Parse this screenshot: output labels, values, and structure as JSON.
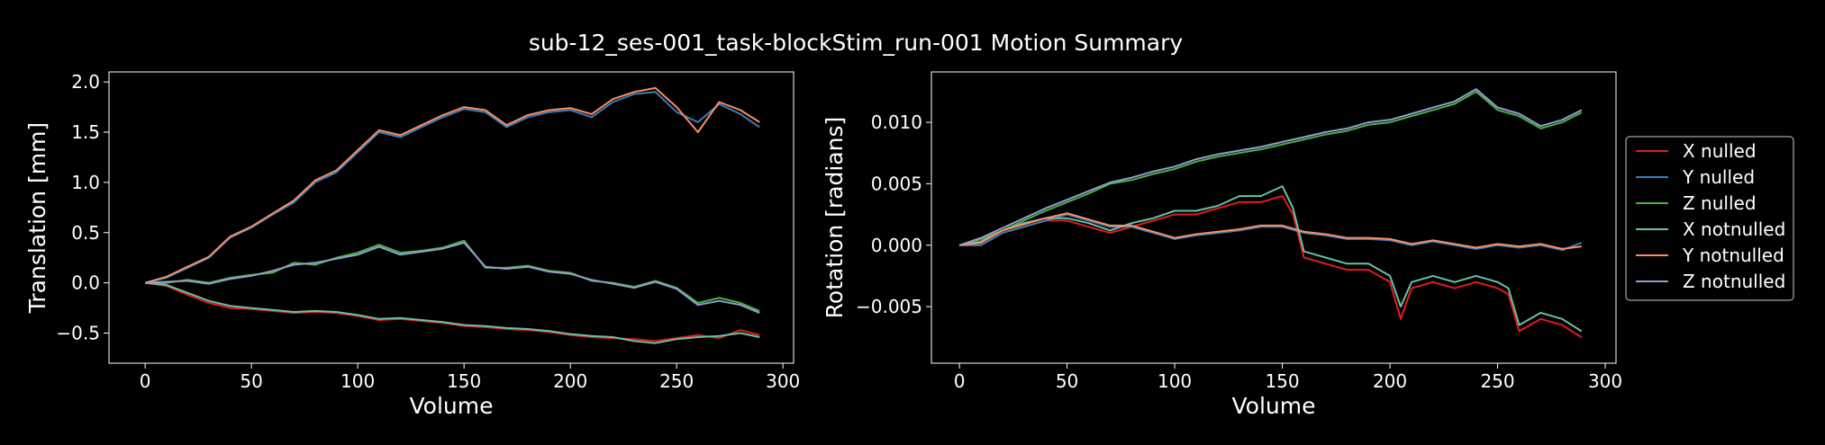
{
  "title": "sub-12_ses-001_task-blockStim_run-001 Motion Summary",
  "chart_data": [
    {
      "type": "line",
      "xlabel": "Volume",
      "ylabel": "Translation [mm]",
      "xlim": [
        -17,
        305
      ],
      "ylim": [
        -0.8,
        2.1
      ],
      "xticks": [
        0,
        50,
        100,
        150,
        200,
        250,
        300
      ],
      "yticks": [
        -0.5,
        0.0,
        0.5,
        1.0,
        1.5,
        2.0
      ],
      "ytick_labels": [
        "−0.5",
        "0.0",
        "0.5",
        "1.0",
        "1.5",
        "2.0"
      ],
      "series": [
        {
          "name": "X nulled",
          "color": "#e41a1c",
          "x": [
            0,
            10,
            20,
            30,
            40,
            50,
            60,
            70,
            80,
            90,
            100,
            110,
            120,
            130,
            140,
            150,
            160,
            170,
            180,
            190,
            200,
            210,
            220,
            230,
            240,
            250,
            260,
            270,
            280,
            289
          ],
          "values": [
            0.0,
            -0.03,
            -0.12,
            -0.2,
            -0.25,
            -0.26,
            -0.28,
            -0.3,
            -0.29,
            -0.3,
            -0.33,
            -0.37,
            -0.36,
            -0.38,
            -0.4,
            -0.43,
            -0.44,
            -0.46,
            -0.47,
            -0.49,
            -0.52,
            -0.54,
            -0.55,
            -0.56,
            -0.58,
            -0.55,
            -0.52,
            -0.55,
            -0.47,
            -0.52
          ]
        },
        {
          "name": "Y nulled",
          "color": "#377eb8",
          "x": [
            0,
            10,
            20,
            30,
            40,
            50,
            60,
            70,
            80,
            90,
            100,
            110,
            120,
            130,
            140,
            150,
            160,
            170,
            180,
            190,
            200,
            210,
            220,
            230,
            240,
            250,
            260,
            270,
            280,
            289
          ],
          "values": [
            0.0,
            0.05,
            0.15,
            0.25,
            0.45,
            0.55,
            0.68,
            0.8,
            1.0,
            1.1,
            1.3,
            1.5,
            1.45,
            1.55,
            1.65,
            1.73,
            1.7,
            1.55,
            1.65,
            1.7,
            1.72,
            1.65,
            1.8,
            1.88,
            1.9,
            1.7,
            1.6,
            1.78,
            1.68,
            1.55
          ]
        },
        {
          "name": "Z nulled",
          "color": "#4daf4a",
          "x": [
            0,
            10,
            20,
            30,
            40,
            50,
            60,
            70,
            80,
            90,
            100,
            110,
            120,
            130,
            140,
            150,
            160,
            170,
            180,
            190,
            200,
            210,
            220,
            230,
            240,
            250,
            260,
            270,
            280,
            289
          ],
          "values": [
            0.0,
            0.0,
            0.03,
            0.0,
            0.05,
            0.08,
            0.1,
            0.2,
            0.18,
            0.25,
            0.3,
            0.38,
            0.3,
            0.32,
            0.35,
            0.42,
            0.15,
            0.15,
            0.17,
            0.12,
            0.1,
            0.02,
            0.0,
            -0.04,
            0.02,
            -0.05,
            -0.2,
            -0.15,
            -0.2,
            -0.28
          ]
        },
        {
          "name": "X notnulled",
          "color": "#66c2a5",
          "x": [
            0,
            10,
            20,
            30,
            40,
            50,
            60,
            70,
            80,
            90,
            100,
            110,
            120,
            130,
            140,
            150,
            160,
            170,
            180,
            190,
            200,
            210,
            220,
            230,
            240,
            250,
            260,
            270,
            280,
            289
          ],
          "values": [
            0.0,
            -0.02,
            -0.1,
            -0.18,
            -0.23,
            -0.25,
            -0.27,
            -0.29,
            -0.28,
            -0.29,
            -0.32,
            -0.36,
            -0.35,
            -0.37,
            -0.39,
            -0.42,
            -0.43,
            -0.45,
            -0.46,
            -0.48,
            -0.51,
            -0.53,
            -0.54,
            -0.58,
            -0.6,
            -0.56,
            -0.54,
            -0.53,
            -0.5,
            -0.54
          ]
        },
        {
          "name": "Y notnulled",
          "color": "#fc8d62",
          "x": [
            0,
            10,
            20,
            30,
            40,
            50,
            60,
            70,
            80,
            90,
            100,
            110,
            120,
            130,
            140,
            150,
            160,
            170,
            180,
            190,
            200,
            210,
            220,
            230,
            240,
            250,
            260,
            270,
            280,
            289
          ],
          "values": [
            0.0,
            0.06,
            0.16,
            0.26,
            0.46,
            0.56,
            0.69,
            0.82,
            1.02,
            1.12,
            1.32,
            1.52,
            1.47,
            1.57,
            1.67,
            1.75,
            1.72,
            1.57,
            1.67,
            1.72,
            1.74,
            1.68,
            1.83,
            1.9,
            1.94,
            1.75,
            1.5,
            1.8,
            1.72,
            1.6
          ]
        },
        {
          "name": "Z notnulled",
          "color": "#8da0cb",
          "x": [
            0,
            10,
            20,
            30,
            40,
            50,
            60,
            70,
            80,
            90,
            100,
            110,
            120,
            130,
            140,
            150,
            160,
            170,
            180,
            190,
            200,
            210,
            220,
            230,
            240,
            250,
            260,
            270,
            280,
            289
          ],
          "values": [
            0.0,
            0.01,
            0.02,
            -0.01,
            0.04,
            0.07,
            0.12,
            0.18,
            0.2,
            0.24,
            0.28,
            0.36,
            0.28,
            0.31,
            0.34,
            0.4,
            0.16,
            0.14,
            0.16,
            0.11,
            0.09,
            0.03,
            -0.01,
            -0.05,
            0.01,
            -0.06,
            -0.22,
            -0.18,
            -0.22,
            -0.3
          ]
        }
      ]
    },
    {
      "type": "line",
      "xlabel": "Volume",
      "ylabel": "Rotation [radians]",
      "xlim": [
        -13,
        305
      ],
      "ylim": [
        -0.0096,
        0.0141
      ],
      "xticks": [
        0,
        50,
        100,
        150,
        200,
        250,
        300
      ],
      "yticks": [
        -0.005,
        0.0,
        0.005,
        0.01
      ],
      "ytick_labels": [
        "−0.005",
        "0.000",
        "0.005",
        "0.010"
      ],
      "legend": "outside-right",
      "series": [
        {
          "name": "X nulled",
          "color": "#e41a1c",
          "x": [
            0,
            10,
            20,
            30,
            40,
            50,
            60,
            70,
            80,
            90,
            100,
            110,
            120,
            130,
            140,
            150,
            155,
            160,
            170,
            180,
            190,
            200,
            205,
            210,
            220,
            230,
            240,
            250,
            255,
            260,
            270,
            280,
            289
          ],
          "values": [
            0.0,
            0.0,
            0.001,
            0.0015,
            0.002,
            0.002,
            0.0015,
            0.001,
            0.0015,
            0.002,
            0.0025,
            0.0025,
            0.003,
            0.0035,
            0.0035,
            0.004,
            0.0025,
            -0.001,
            -0.0015,
            -0.002,
            -0.002,
            -0.003,
            -0.006,
            -0.0035,
            -0.003,
            -0.0035,
            -0.003,
            -0.0035,
            -0.004,
            -0.007,
            -0.006,
            -0.0065,
            -0.0075
          ]
        },
        {
          "name": "Y nulled",
          "color": "#377eb8",
          "x": [
            0,
            10,
            20,
            30,
            40,
            50,
            60,
            70,
            80,
            90,
            100,
            110,
            120,
            130,
            140,
            150,
            160,
            170,
            180,
            190,
            200,
            210,
            220,
            230,
            240,
            250,
            260,
            270,
            280,
            289
          ],
          "values": [
            0.0,
            0.0,
            0.001,
            0.0015,
            0.002,
            0.0025,
            0.002,
            0.0015,
            0.0015,
            0.001,
            0.0005,
            0.0008,
            0.001,
            0.0012,
            0.0015,
            0.0015,
            0.001,
            0.0008,
            0.0005,
            0.0005,
            0.0004,
            0.0,
            0.0003,
            0.0,
            -0.0003,
            0.0,
            -0.0002,
            0.0,
            -0.0004,
            0.0002
          ]
        },
        {
          "name": "Z nulled",
          "color": "#4daf4a",
          "x": [
            0,
            10,
            20,
            30,
            40,
            50,
            60,
            70,
            80,
            90,
            100,
            110,
            120,
            130,
            140,
            150,
            160,
            170,
            180,
            190,
            200,
            210,
            220,
            230,
            240,
            250,
            260,
            270,
            280,
            289
          ],
          "values": [
            0.0,
            0.0005,
            0.0012,
            0.002,
            0.0028,
            0.0035,
            0.0042,
            0.005,
            0.0053,
            0.0058,
            0.0062,
            0.0068,
            0.0072,
            0.0075,
            0.0078,
            0.0082,
            0.0086,
            0.009,
            0.0093,
            0.0098,
            0.01,
            0.0105,
            0.011,
            0.0115,
            0.0125,
            0.011,
            0.0105,
            0.0095,
            0.01,
            0.0108
          ]
        },
        {
          "name": "X notnulled",
          "color": "#66c2a5",
          "x": [
            0,
            10,
            20,
            30,
            40,
            50,
            60,
            70,
            80,
            90,
            100,
            110,
            120,
            130,
            140,
            150,
            155,
            160,
            170,
            180,
            190,
            200,
            205,
            210,
            220,
            230,
            240,
            250,
            255,
            260,
            270,
            280,
            289
          ],
          "values": [
            0.0,
            0.0003,
            0.0012,
            0.0018,
            0.0022,
            0.0022,
            0.0018,
            0.0012,
            0.0018,
            0.0022,
            0.0028,
            0.0028,
            0.0032,
            0.004,
            0.004,
            0.0048,
            0.003,
            -0.0005,
            -0.001,
            -0.0015,
            -0.0015,
            -0.0025,
            -0.005,
            -0.003,
            -0.0025,
            -0.003,
            -0.0025,
            -0.003,
            -0.0035,
            -0.0065,
            -0.0055,
            -0.006,
            -0.007
          ]
        },
        {
          "name": "Y notnulled",
          "color": "#fc8d62",
          "x": [
            0,
            10,
            20,
            30,
            40,
            50,
            60,
            70,
            80,
            90,
            100,
            110,
            120,
            130,
            140,
            150,
            160,
            170,
            180,
            190,
            200,
            210,
            220,
            230,
            240,
            250,
            260,
            270,
            280,
            289
          ],
          "values": [
            0.0,
            0.0002,
            0.0012,
            0.0017,
            0.0022,
            0.0026,
            0.0021,
            0.0016,
            0.0016,
            0.0011,
            0.0006,
            0.0009,
            0.0011,
            0.0013,
            0.0016,
            0.0016,
            0.0011,
            0.0009,
            0.0006,
            0.0006,
            0.0005,
            0.0001,
            0.0004,
            0.0001,
            -0.0002,
            0.0001,
            -0.0001,
            0.0001,
            -0.0003,
            -0.0001
          ]
        },
        {
          "name": "Z notnulled",
          "color": "#8da0cb",
          "x": [
            0,
            10,
            20,
            30,
            40,
            50,
            60,
            70,
            80,
            90,
            100,
            110,
            120,
            130,
            140,
            150,
            160,
            170,
            180,
            190,
            200,
            210,
            220,
            230,
            240,
            250,
            260,
            270,
            280,
            289
          ],
          "values": [
            0.0,
            0.0006,
            0.0014,
            0.0022,
            0.003,
            0.0037,
            0.0044,
            0.0051,
            0.0055,
            0.006,
            0.0064,
            0.007,
            0.0074,
            0.0077,
            0.008,
            0.0084,
            0.0088,
            0.0092,
            0.0095,
            0.01,
            0.0102,
            0.0107,
            0.0112,
            0.0117,
            0.0127,
            0.0112,
            0.0107,
            0.0097,
            0.0102,
            0.011
          ]
        }
      ]
    }
  ]
}
